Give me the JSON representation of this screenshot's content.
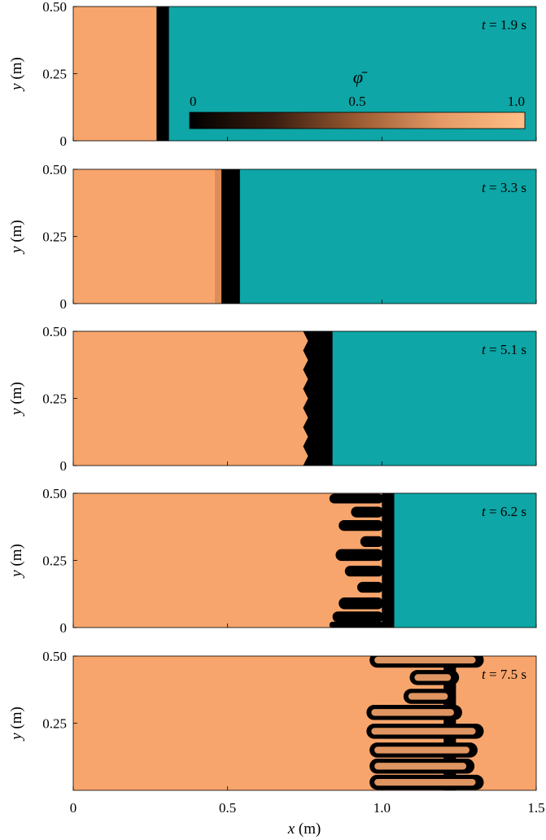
{
  "figure": {
    "xlabel_var": "x",
    "xlabel_unit": " (m)",
    "ylabel_var": "y",
    "ylabel_unit": " (m)",
    "time_var": "t",
    "time_unit": " s",
    "background_color": "#0ea6a6",
    "phi_max_color": "#f7a56c",
    "front_color": "#000000"
  },
  "colorbar": {
    "title": "φ̄",
    "tick_labels": [
      "0",
      "0.5",
      "1.0"
    ],
    "tick_values": [
      0,
      0.5,
      1.0
    ],
    "colors": [
      "#000000",
      "#3a1d10",
      "#9a5a32",
      "#e59a66",
      "#ffbf86"
    ]
  },
  "chart_data": [
    {
      "type": "heatmap",
      "panel": 1,
      "time_text": "1.9",
      "time_s": 1.9,
      "xlim": [
        0,
        1.5
      ],
      "ylim": [
        0,
        0.5
      ],
      "x_tick_labels": [],
      "y_tick_labels": [
        "0",
        "0.25",
        "0.50"
      ],
      "y_tick_values": [
        0,
        0.25,
        0.5
      ],
      "front_x_start": 0.27,
      "front_x_end": 0.31,
      "fingering": false
    },
    {
      "type": "heatmap",
      "panel": 2,
      "time_text": "3.3",
      "time_s": 3.3,
      "xlim": [
        0,
        1.5
      ],
      "ylim": [
        0,
        0.5
      ],
      "x_tick_labels": [],
      "y_tick_labels": [
        "0",
        "0.25",
        "0.50"
      ],
      "y_tick_values": [
        0,
        0.25,
        0.5
      ],
      "front_x_start": 0.48,
      "front_x_end": 0.54,
      "fingering": false
    },
    {
      "type": "heatmap",
      "panel": 3,
      "time_text": "5.1",
      "time_s": 5.1,
      "xlim": [
        0,
        1.5
      ],
      "ylim": [
        0,
        0.5
      ],
      "x_tick_labels": [],
      "y_tick_labels": [
        "0",
        "0.25",
        "0.50"
      ],
      "y_tick_values": [
        0,
        0.25,
        0.5
      ],
      "front_x_start": 0.75,
      "front_x_end": 0.84,
      "fingering": "weak"
    },
    {
      "type": "heatmap",
      "panel": 4,
      "time_text": "6.2",
      "time_s": 6.2,
      "xlim": [
        0,
        1.5
      ],
      "ylim": [
        0,
        0.5
      ],
      "x_tick_labels": [],
      "y_tick_labels": [
        "0",
        "0.25",
        "0.50"
      ],
      "y_tick_values": [
        0,
        0.25,
        0.5
      ],
      "front_x_start": 0.85,
      "front_x_end": 1.04,
      "fingering": "developing"
    },
    {
      "type": "heatmap",
      "panel": 5,
      "time_text": "7.5",
      "time_s": 7.5,
      "xlim": [
        0,
        1.5
      ],
      "ylim": [
        0,
        0.5
      ],
      "x_tick_labels": [
        "0",
        "0.5",
        "1.0",
        "1.5"
      ],
      "x_tick_values": [
        0,
        0.5,
        1.0,
        1.5
      ],
      "y_tick_labels": [
        "0.25",
        "0.50"
      ],
      "y_tick_values": [
        0.25,
        0.5
      ],
      "front_x_start": 0.95,
      "front_x_end": 1.33,
      "fingering": "strong"
    }
  ]
}
